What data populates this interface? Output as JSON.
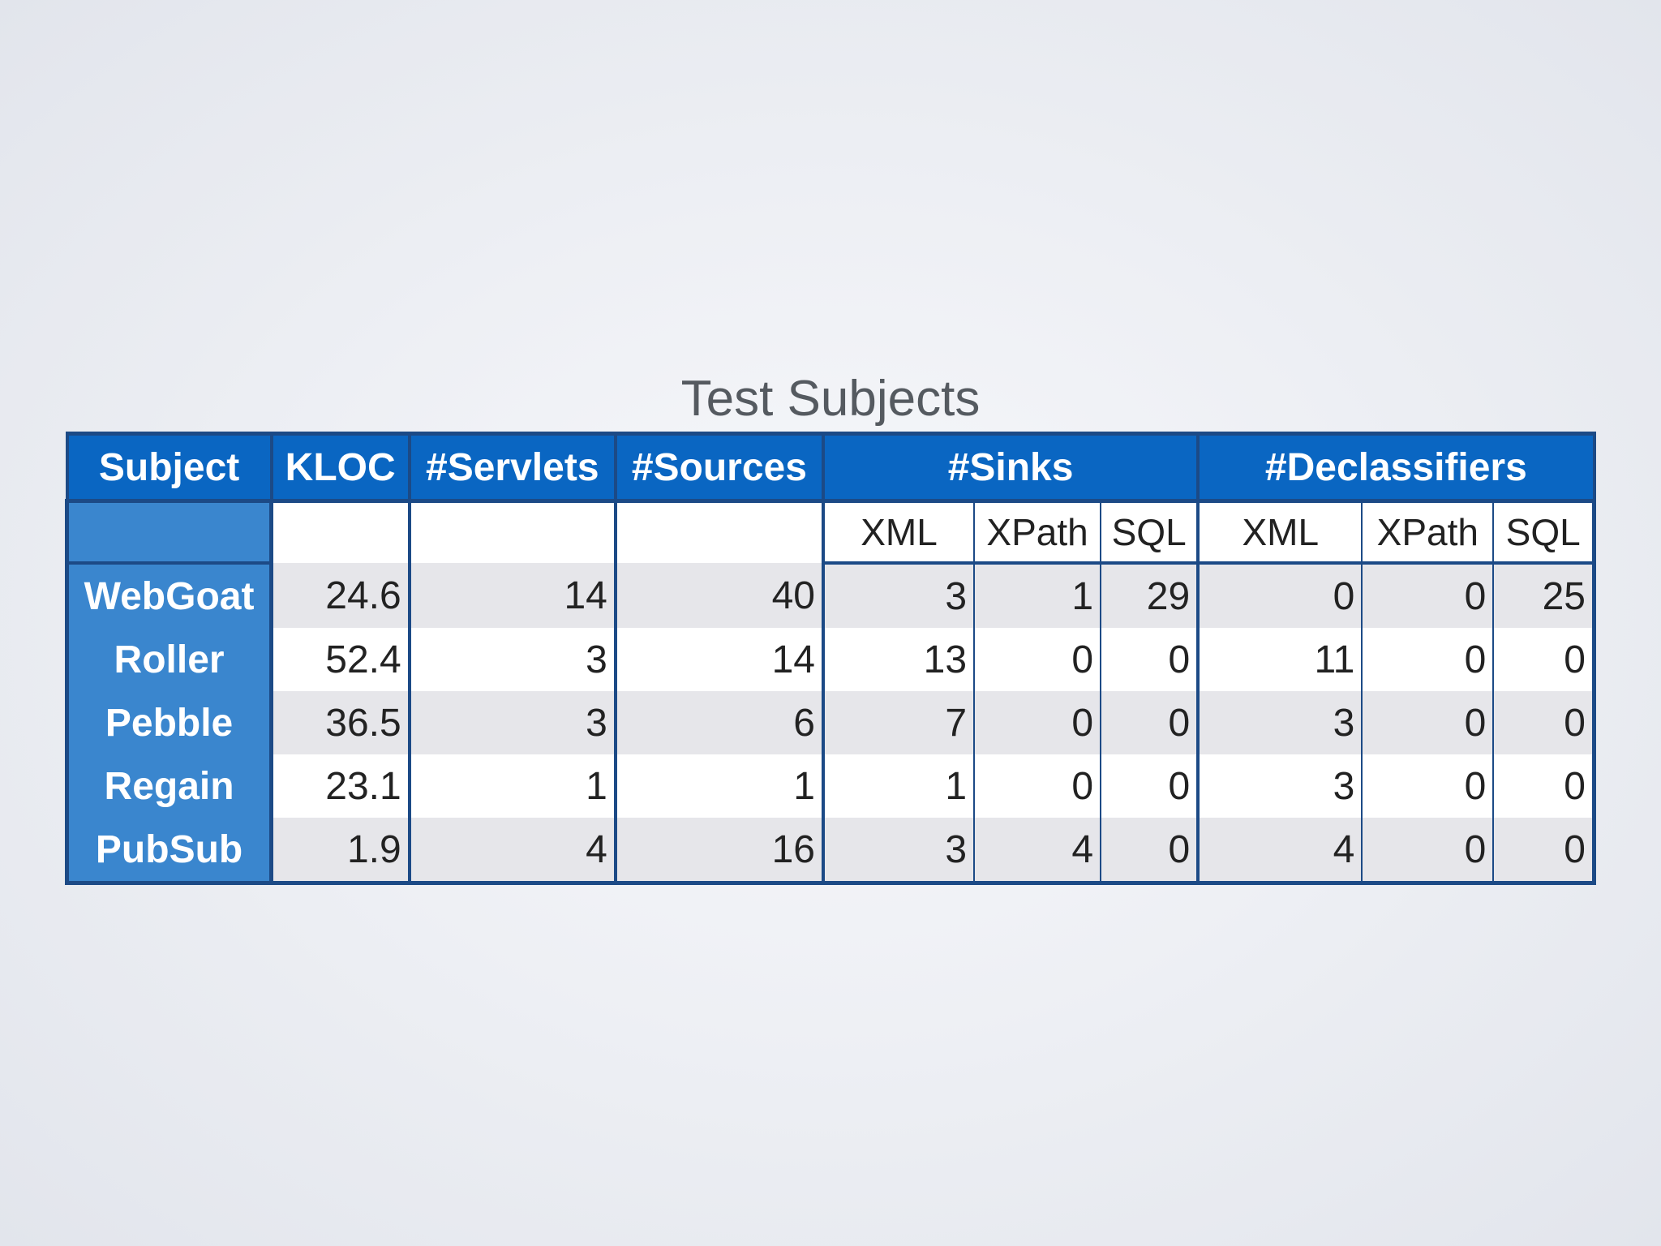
{
  "title": "Test Subjects",
  "header": {
    "subject": "Subject",
    "kloc": "KLOC",
    "servlets": "#Servlets",
    "sources": "#Sources",
    "sinks": "#Sinks",
    "declassifiers": "#Declassifiers"
  },
  "subheader": {
    "sinks": [
      "XML",
      "XPath",
      "SQL"
    ],
    "declassifiers": [
      "XML",
      "XPath",
      "SQL"
    ]
  },
  "rows": [
    {
      "subject": "WebGoat",
      "kloc": "24.6",
      "servlets": "14",
      "sources": "40",
      "sinks_xml": "3",
      "sinks_xpath": "1",
      "sinks_sql": "29",
      "decl_xml": "0",
      "decl_xpath": "0",
      "decl_sql": "25"
    },
    {
      "subject": "Roller",
      "kloc": "52.4",
      "servlets": "3",
      "sources": "14",
      "sinks_xml": "13",
      "sinks_xpath": "0",
      "sinks_sql": "0",
      "decl_xml": "11",
      "decl_xpath": "0",
      "decl_sql": "0"
    },
    {
      "subject": "Pebble",
      "kloc": "36.5",
      "servlets": "3",
      "sources": "6",
      "sinks_xml": "7",
      "sinks_xpath": "0",
      "sinks_sql": "0",
      "decl_xml": "3",
      "decl_xpath": "0",
      "decl_sql": "0"
    },
    {
      "subject": "Regain",
      "kloc": "23.1",
      "servlets": "1",
      "sources": "1",
      "sinks_xml": "1",
      "sinks_xpath": "0",
      "sinks_sql": "0",
      "decl_xml": "3",
      "decl_xpath": "0",
      "decl_sql": "0"
    },
    {
      "subject": "PubSub",
      "kloc": "1.9",
      "servlets": "4",
      "sources": "16",
      "sinks_xml": "3",
      "sinks_xpath": "4",
      "sinks_sql": "0",
      "decl_xml": "4",
      "decl_xpath": "0",
      "decl_sql": "0"
    }
  ],
  "colors": {
    "header_bg": "#0a66c2",
    "row_label_bg": "#3a86ce",
    "border": "#1c4a86",
    "shaded_row": "#e6e6ea",
    "title_text": "#555a60"
  }
}
